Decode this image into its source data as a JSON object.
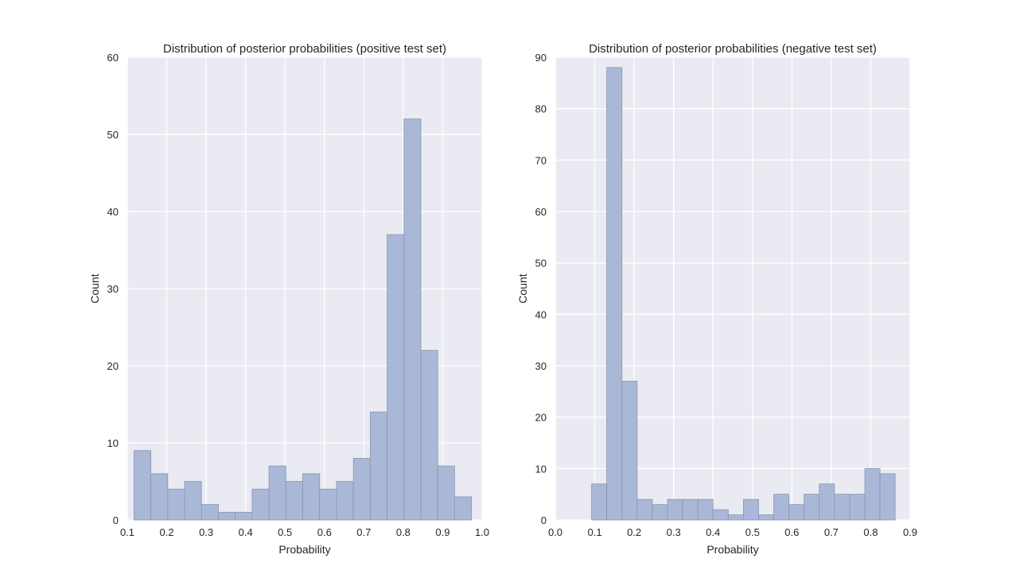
{
  "chart_data": [
    {
      "type": "bar",
      "title": "Distribution of posterior probabilities (positive test set)",
      "xlabel": "Probability",
      "ylabel": "Count",
      "xlim": [
        0.1,
        1.0
      ],
      "ylim": [
        0,
        60
      ],
      "xticks": [
        "0.1",
        "0.2",
        "0.3",
        "0.4",
        "0.5",
        "0.6",
        "0.7",
        "0.8",
        "0.9",
        "1.0"
      ],
      "yticks": [
        "0",
        "10",
        "20",
        "30",
        "40",
        "50",
        "60"
      ],
      "grid": true,
      "bin_start": 0.117,
      "bin_width": 0.0428,
      "values": [
        9,
        6,
        4,
        5,
        2,
        1,
        1,
        4,
        7,
        5,
        6,
        4,
        5,
        8,
        14,
        37,
        52,
        22,
        7,
        3
      ]
    },
    {
      "type": "bar",
      "title": "Distribution of posterior probabilities (negative test set)",
      "xlabel": "Probability",
      "ylabel": "Count",
      "xlim": [
        0.0,
        0.9
      ],
      "ylim": [
        0,
        90
      ],
      "xticks": [
        "0.0",
        "0.1",
        "0.2",
        "0.3",
        "0.4",
        "0.5",
        "0.6",
        "0.7",
        "0.8",
        "0.9"
      ],
      "yticks": [
        "0",
        "10",
        "20",
        "30",
        "40",
        "50",
        "60",
        "70",
        "80",
        "90"
      ],
      "grid": true,
      "bin_start": 0.092,
      "bin_width": 0.0385,
      "values": [
        7,
        88,
        27,
        4,
        3,
        4,
        4,
        4,
        2,
        1,
        4,
        1,
        5,
        3,
        5,
        7,
        5,
        5,
        10,
        9
      ]
    }
  ],
  "colors": {
    "plot_bg": "#eaeaf2",
    "grid": "#ffffff",
    "bar_fill": "#a9b8d6",
    "bar_edge": "#8a96b0"
  }
}
